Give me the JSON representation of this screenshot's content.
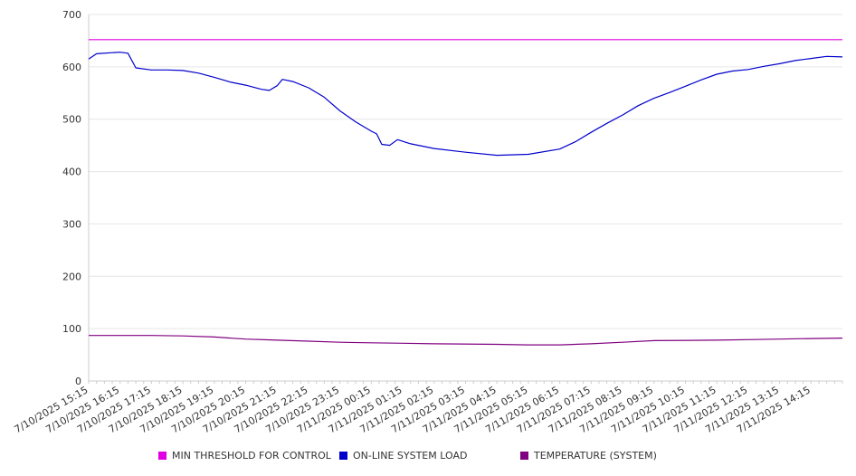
{
  "chart_data": {
    "type": "line",
    "title": "",
    "xlabel": "",
    "ylabel": "",
    "ylim": [
      0,
      700
    ],
    "yticks": [
      0,
      100,
      200,
      300,
      400,
      500,
      600,
      700
    ],
    "grid": true,
    "legend_position": "bottom",
    "x_tick_labels": [
      "7/10/2025 15:15",
      "7/10/2025 16:15",
      "7/10/2025 17:15",
      "7/10/2025 18:15",
      "7/10/2025 19:15",
      "7/10/2025 20:15",
      "7/10/2025 21:15",
      "7/10/2025 22:15",
      "7/10/2025 23:15",
      "7/11/2025 00:15",
      "7/11/2025 01:15",
      "7/11/2025 02:15",
      "7/11/2025 03:15",
      "7/11/2025 04:15",
      "7/11/2025 05:15",
      "7/11/2025 06:15",
      "7/11/2025 07:15",
      "7/11/2025 08:15",
      "7/11/2025 09:15",
      "7/11/2025 10:15",
      "7/11/2025 11:15",
      "7/11/2025 12:15",
      "7/11/2025 13:15",
      "7/11/2025 14:15"
    ],
    "series": [
      {
        "name": "MIN THRESHOLD FOR CONTROL",
        "color": "#e100e1",
        "points": [
          [
            "7/10/2025 15:15",
            652
          ],
          [
            "7/11/2025 15:15",
            652
          ]
        ]
      },
      {
        "name": "ON-LINE SYSTEM LOAD",
        "color": "#0000cc",
        "points": [
          [
            "7/10/2025 15:15",
            615
          ],
          [
            "7/10/2025 15:30",
            625
          ],
          [
            "7/10/2025 16:00",
            627
          ],
          [
            "7/10/2025 16:15",
            628
          ],
          [
            "7/10/2025 16:30",
            626
          ],
          [
            "7/10/2025 16:45",
            598
          ],
          [
            "7/10/2025 17:15",
            594
          ],
          [
            "7/10/2025 17:45",
            594
          ],
          [
            "7/10/2025 18:15",
            593
          ],
          [
            "7/10/2025 18:45",
            588
          ],
          [
            "7/10/2025 19:15",
            580
          ],
          [
            "7/10/2025 19:45",
            571
          ],
          [
            "7/10/2025 20:15",
            565
          ],
          [
            "7/10/2025 20:45",
            557
          ],
          [
            "7/10/2025 21:00",
            555
          ],
          [
            "7/10/2025 21:15",
            564
          ],
          [
            "7/10/2025 21:25",
            576
          ],
          [
            "7/10/2025 21:45",
            572
          ],
          [
            "7/10/2025 22:15",
            560
          ],
          [
            "7/10/2025 22:45",
            542
          ],
          [
            "7/10/2025 23:15",
            516
          ],
          [
            "7/10/2025 23:45",
            495
          ],
          [
            "7/11/2025 00:15",
            477
          ],
          [
            "7/11/2025 00:25",
            472
          ],
          [
            "7/11/2025 00:35",
            452
          ],
          [
            "7/11/2025 00:50",
            450
          ],
          [
            "7/11/2025 01:05",
            461
          ],
          [
            "7/11/2025 01:30",
            453
          ],
          [
            "7/11/2025 02:15",
            444
          ],
          [
            "7/11/2025 03:15",
            437
          ],
          [
            "7/11/2025 04:15",
            431
          ],
          [
            "7/11/2025 05:15",
            433
          ],
          [
            "7/11/2025 06:15",
            443
          ],
          [
            "7/11/2025 06:45",
            457
          ],
          [
            "7/11/2025 07:15",
            475
          ],
          [
            "7/11/2025 07:45",
            492
          ],
          [
            "7/11/2025 08:15",
            508
          ],
          [
            "7/11/2025 08:45",
            526
          ],
          [
            "7/11/2025 09:15",
            540
          ],
          [
            "7/11/2025 09:45",
            551
          ],
          [
            "7/11/2025 10:15",
            563
          ],
          [
            "7/11/2025 10:45",
            575
          ],
          [
            "7/11/2025 11:15",
            586
          ],
          [
            "7/11/2025 11:45",
            592
          ],
          [
            "7/11/2025 12:15",
            595
          ],
          [
            "7/11/2025 12:45",
            601
          ],
          [
            "7/11/2025 13:15",
            606
          ],
          [
            "7/11/2025 13:45",
            612
          ],
          [
            "7/11/2025 14:15",
            616
          ],
          [
            "7/11/2025 14:45",
            620
          ],
          [
            "7/11/2025 15:15",
            619
          ]
        ]
      },
      {
        "name": "TEMPERATURE (SYSTEM)",
        "color": "#800080",
        "points": [
          [
            "7/10/2025 15:15",
            87
          ],
          [
            "7/10/2025 17:15",
            87
          ],
          [
            "7/10/2025 18:15",
            86
          ],
          [
            "7/10/2025 19:15",
            84
          ],
          [
            "7/10/2025 20:15",
            80
          ],
          [
            "7/10/2025 21:15",
            78
          ],
          [
            "7/10/2025 22:15",
            76
          ],
          [
            "7/10/2025 23:15",
            74
          ],
          [
            "7/11/2025 00:15",
            73
          ],
          [
            "7/11/2025 01:15",
            72
          ],
          [
            "7/11/2025 02:15",
            71
          ],
          [
            "7/11/2025 04:15",
            70
          ],
          [
            "7/11/2025 05:15",
            69
          ],
          [
            "7/11/2025 06:15",
            69
          ],
          [
            "7/11/2025 07:15",
            71
          ],
          [
            "7/11/2025 08:15",
            74
          ],
          [
            "7/11/2025 09:15",
            77
          ],
          [
            "7/11/2025 11:15",
            78
          ],
          [
            "7/11/2025 12:15",
            79
          ],
          [
            "7/11/2025 13:15",
            80
          ],
          [
            "7/11/2025 14:15",
            81
          ],
          [
            "7/11/2025 15:15",
            82
          ]
        ]
      }
    ]
  }
}
